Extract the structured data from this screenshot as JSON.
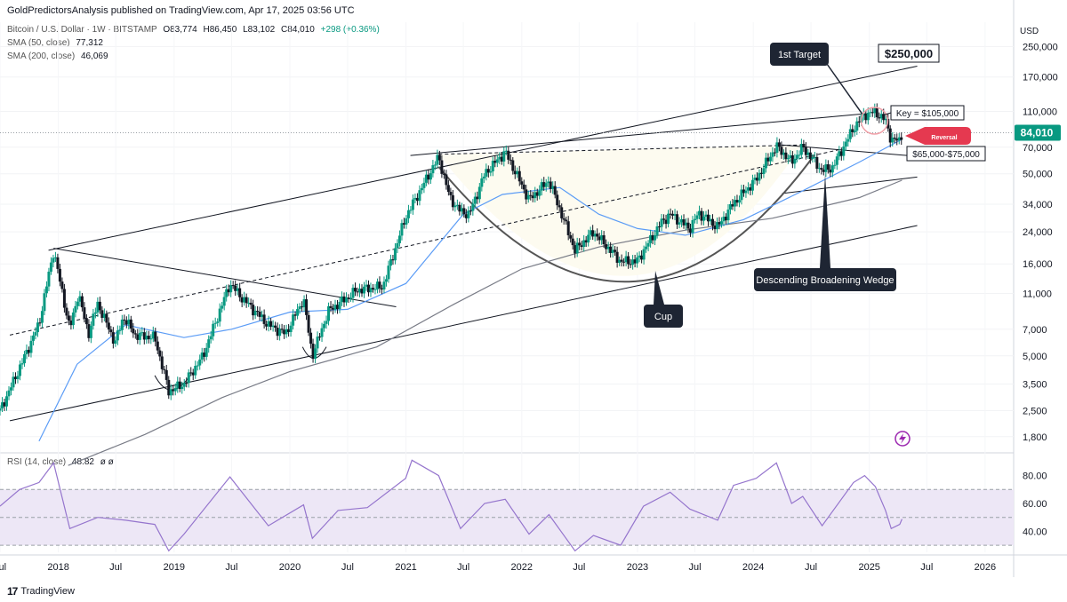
{
  "header": {
    "published": "GoldPredictorsAnalysis published on TradingView.com, Apr 17, 2025 03:56 UTC"
  },
  "legend": {
    "symbol": "Bitcoin / U.S. Dollar · 1W · BITSTAMP",
    "open": "O83,774",
    "high": "H86,450",
    "low": "L83,102",
    "close": "C84,010",
    "change": "+298 (+0.36%)",
    "sma50_label": "SMA (50, close)",
    "sma50_value": "77,312",
    "sma200_label": "SMA (200, close)",
    "sma200_value": "46,069",
    "rsi_label": "RSI (14, close)",
    "rsi_value": "48.82",
    "rsi_extra": "ø ø"
  },
  "footer": {
    "brand": "TradingView",
    "logo_glyph": "17"
  },
  "annotations": {
    "first_target": "1st Target",
    "target_price": "$250,000",
    "key": "Key = $105,000",
    "support_zone": "$65,000-$75,000",
    "reversal": "Reversal",
    "pattern_wedge": "Descending Broadening Wedge",
    "pattern_cup": "Cup"
  },
  "colors": {
    "up": "#089981",
    "down": "#131722",
    "sma50": "#5b9cf6",
    "sma200": "#787b86",
    "rsi": "#9575cd",
    "rsi_band": "#ede7f6",
    "callout": "#1e2533",
    "reversal": "#e53950",
    "price_tag": "#089981",
    "cup_fill": "#fdfbf0"
  },
  "chart_data": {
    "type": "candlestick",
    "title": "Bitcoin / U.S. Dollar · 1W · BITSTAMP",
    "y_unit": "USD",
    "y_scale": "log",
    "ylim": [
      1500,
      340000
    ],
    "y_ticks": [
      1800,
      2500,
      3500,
      5000,
      7000,
      11000,
      16000,
      24000,
      34000,
      50000,
      70000,
      110000,
      170000,
      250000
    ],
    "y_tick_labels": [
      "1,800",
      "2,500",
      "3,500",
      "5,000",
      "7,000",
      "11,000",
      "16,000",
      "24,000",
      "34,000",
      "50,000",
      "70,000",
      "110,000",
      "170,000",
      "250,000"
    ],
    "x_range": [
      "2017-07-01",
      "2026-04-01"
    ],
    "x_ticks": [
      {
        "date": "2017-07-01",
        "label": "Jul"
      },
      {
        "date": "2018-01-01",
        "label": "2018"
      },
      {
        "date": "2018-07-01",
        "label": "Jul"
      },
      {
        "date": "2019-01-01",
        "label": "2019"
      },
      {
        "date": "2019-07-01",
        "label": "Jul"
      },
      {
        "date": "2020-01-01",
        "label": "2020"
      },
      {
        "date": "2020-07-01",
        "label": "Jul"
      },
      {
        "date": "2021-01-01",
        "label": "2021"
      },
      {
        "date": "2021-07-01",
        "label": "Jul"
      },
      {
        "date": "2022-01-01",
        "label": "2022"
      },
      {
        "date": "2022-07-01",
        "label": "Jul"
      },
      {
        "date": "2023-01-01",
        "label": "2023"
      },
      {
        "date": "2023-07-01",
        "label": "Jul"
      },
      {
        "date": "2024-01-01",
        "label": "2024"
      },
      {
        "date": "2024-07-01",
        "label": "Jul"
      },
      {
        "date": "2025-01-01",
        "label": "2025"
      },
      {
        "date": "2025-07-01",
        "label": "Jul"
      },
      {
        "date": "2026-01-01",
        "label": "2026"
      }
    ],
    "last_price": 84010,
    "last_price_label": "84,010",
    "price_path": [
      [
        "2017-07-01",
        2500
      ],
      [
        "2017-09-01",
        4300
      ],
      [
        "2017-11-01",
        7500
      ],
      [
        "2017-12-17",
        19000
      ],
      [
        "2018-02-06",
        7000
      ],
      [
        "2018-03-05",
        11000
      ],
      [
        "2018-04-06",
        6600
      ],
      [
        "2018-05-05",
        9700
      ],
      [
        "2018-06-29",
        5900
      ],
      [
        "2018-07-25",
        8200
      ],
      [
        "2018-09-01",
        6500
      ],
      [
        "2018-11-01",
        6300
      ],
      [
        "2018-12-15",
        3200
      ],
      [
        "2019-02-01",
        3500
      ],
      [
        "2019-04-02",
        5000
      ],
      [
        "2019-06-26",
        12500
      ],
      [
        "2019-08-01",
        10500
      ],
      [
        "2019-10-25",
        7400
      ],
      [
        "2019-12-18",
        6600
      ],
      [
        "2020-02-13",
        10300
      ],
      [
        "2020-03-12",
        5000
      ],
      [
        "2020-05-01",
        8800
      ],
      [
        "2020-08-01",
        11500
      ],
      [
        "2020-10-20",
        12000
      ],
      [
        "2020-12-31",
        29000
      ],
      [
        "2021-04-14",
        62000
      ],
      [
        "2021-05-19",
        37000
      ],
      [
        "2021-06-22",
        31000
      ],
      [
        "2021-07-20",
        30000
      ],
      [
        "2021-09-06",
        50000
      ],
      [
        "2021-11-10",
        66000
      ],
      [
        "2022-01-24",
        36000
      ],
      [
        "2022-03-28",
        46000
      ],
      [
        "2022-06-18",
        19000
      ],
      [
        "2022-08-15",
        24000
      ],
      [
        "2022-11-09",
        16500
      ],
      [
        "2022-12-30",
        16500
      ],
      [
        "2023-03-17",
        27000
      ],
      [
        "2023-04-14",
        30000
      ],
      [
        "2023-06-15",
        25000
      ],
      [
        "2023-07-13",
        30500
      ],
      [
        "2023-09-11",
        25500
      ],
      [
        "2023-10-31",
        34500
      ],
      [
        "2024-01-10",
        46500
      ],
      [
        "2024-03-14",
        71000
      ],
      [
        "2024-05-01",
        58000
      ],
      [
        "2024-06-05",
        70000
      ],
      [
        "2024-08-05",
        52000
      ],
      [
        "2024-09-06",
        54000
      ],
      [
        "2024-11-12",
        89000
      ],
      [
        "2024-12-17",
        106000
      ],
      [
        "2025-01-20",
        109000
      ],
      [
        "2025-02-21",
        98000
      ],
      [
        "2025-03-11",
        77000
      ],
      [
        "2025-04-07",
        76000
      ],
      [
        "2025-04-14",
        84010
      ]
    ],
    "sma50_path": [
      [
        "2017-11-01",
        1700
      ],
      [
        "2018-03-01",
        4500
      ],
      [
        "2018-08-01",
        7400
      ],
      [
        "2019-02-01",
        6300
      ],
      [
        "2019-07-01",
        7000
      ],
      [
        "2020-01-01",
        8700
      ],
      [
        "2020-07-01",
        9000
      ],
      [
        "2021-01-01",
        12500
      ],
      [
        "2021-07-01",
        30000
      ],
      [
        "2021-11-01",
        38500
      ],
      [
        "2022-05-01",
        42000
      ],
      [
        "2022-09-01",
        30000
      ],
      [
        "2023-01-01",
        25000
      ],
      [
        "2023-06-01",
        23000
      ],
      [
        "2023-12-01",
        28000
      ],
      [
        "2024-06-01",
        40000
      ],
      [
        "2024-12-01",
        58000
      ],
      [
        "2025-04-14",
        77312
      ]
    ],
    "sma200_path": [
      [
        "2018-02-01",
        1250
      ],
      [
        "2018-10-01",
        1850
      ],
      [
        "2019-06-01",
        2950
      ],
      [
        "2020-01-01",
        4100
      ],
      [
        "2020-10-01",
        5600
      ],
      [
        "2021-06-01",
        9600
      ],
      [
        "2022-01-01",
        15000
      ],
      [
        "2022-09-01",
        19800
      ],
      [
        "2023-06-01",
        24500
      ],
      [
        "2024-03-01",
        28500
      ],
      [
        "2024-12-01",
        37000
      ],
      [
        "2025-04-14",
        46069
      ]
    ],
    "rsi": {
      "ylim": [
        25,
        95
      ],
      "ticks": [
        40,
        60,
        80
      ],
      "tick_labels": [
        "40.00",
        "60.00",
        "80.00"
      ],
      "band": [
        30,
        70
      ],
      "mid": 50,
      "last": 48.82,
      "path": [
        [
          "2017-07-01",
          58
        ],
        [
          "2017-09-01",
          70
        ],
        [
          "2017-11-01",
          75
        ],
        [
          "2017-12-17",
          89
        ],
        [
          "2018-02-06",
          42
        ],
        [
          "2018-05-05",
          50
        ],
        [
          "2018-08-01",
          48
        ],
        [
          "2018-11-01",
          45
        ],
        [
          "2018-12-15",
          26
        ],
        [
          "2019-02-01",
          38
        ],
        [
          "2019-06-26",
          79
        ],
        [
          "2019-10-25",
          44
        ],
        [
          "2020-02-13",
          59
        ],
        [
          "2020-03-12",
          35
        ],
        [
          "2020-06-01",
          55
        ],
        [
          "2020-09-01",
          57
        ],
        [
          "2020-12-31",
          78
        ],
        [
          "2021-01-20",
          91
        ],
        [
          "2021-04-14",
          80
        ],
        [
          "2021-06-22",
          42
        ],
        [
          "2021-09-06",
          60
        ],
        [
          "2021-11-10",
          63
        ],
        [
          "2022-01-24",
          38
        ],
        [
          "2022-03-28",
          52
        ],
        [
          "2022-06-18",
          26
        ],
        [
          "2022-08-15",
          37
        ],
        [
          "2022-11-09",
          30
        ],
        [
          "2023-01-20",
          58
        ],
        [
          "2023-04-14",
          68
        ],
        [
          "2023-06-15",
          56
        ],
        [
          "2023-09-11",
          48
        ],
        [
          "2023-10-31",
          73
        ],
        [
          "2024-01-10",
          78
        ],
        [
          "2024-03-14",
          89
        ],
        [
          "2024-05-01",
          60
        ],
        [
          "2024-06-05",
          65
        ],
        [
          "2024-08-05",
          44
        ],
        [
          "2024-11-12",
          75
        ],
        [
          "2024-12-17",
          80
        ],
        [
          "2025-01-20",
          72
        ],
        [
          "2025-02-21",
          55
        ],
        [
          "2025-03-11",
          42
        ],
        [
          "2025-04-07",
          45
        ],
        [
          "2025-04-14",
          48.82
        ]
      ]
    },
    "drawings": {
      "upper_channel": [
        [
          "2017-12-01",
          19000
        ],
        [
          "2025-06-01",
          195000
        ]
      ],
      "lower_channel": [
        [
          "2017-08-01",
          2200
        ],
        [
          "2025-06-01",
          26000
        ]
      ],
      "upper_dashed": [
        [
          "2017-08-01",
          6500
        ],
        [
          "2024-10-01",
          68000
        ]
      ],
      "resistance_top": [
        [
          "2021-01-15",
          63000
        ],
        [
          "2024-12-20",
          107000
        ]
      ],
      "sma_parallel": [
        [
          "2024-04-01",
          39000
        ],
        [
          "2025-06-01",
          48000
        ]
      ],
      "neckline": [
        [
          "2021-04-14",
          64000
        ],
        [
          "2024-06-01",
          72000
        ]
      ],
      "wedge_top": [
        [
          "2024-04-01",
          72000
        ],
        [
          "2025-05-01",
          63000
        ]
      ],
      "downtrend_2018": [
        [
          "2017-12-17",
          19500
        ],
        [
          "2020-12-01",
          9300
        ]
      ]
    }
  }
}
